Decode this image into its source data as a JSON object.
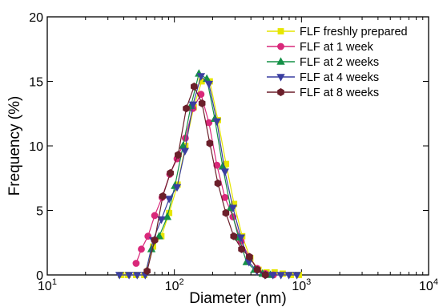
{
  "chart_data": {
    "type": "line",
    "xlabel": "Diameter (nm)",
    "ylabel": "Frequency (%)",
    "xscale": "log",
    "xlim": [
      10,
      10000
    ],
    "ylim": [
      0,
      20
    ],
    "x_ticks": [
      {
        "value": 10,
        "base": "10",
        "exp": "1"
      },
      {
        "value": 100,
        "base": "10",
        "exp": "2"
      },
      {
        "value": 1000,
        "base": "10",
        "exp": "3"
      },
      {
        "value": 10000,
        "base": "10",
        "exp": "4"
      }
    ],
    "y_ticks": [
      0,
      5,
      10,
      15,
      20
    ],
    "legend_position": "top-right",
    "grid": false,
    "series": [
      {
        "name": "FLF freshly prepared",
        "color": "#e6e600",
        "marker": "square",
        "x": [
          38,
          43,
          50,
          58,
          68,
          79,
          91,
          106,
          122,
          142,
          164,
          190,
          220,
          255,
          295,
          342,
          396,
          459,
          531,
          615,
          712,
          825,
          955
        ],
        "y": [
          0,
          0,
          0,
          0,
          2.2,
          3.0,
          4.8,
          7.0,
          10.0,
          13.0,
          15.0,
          15.0,
          12.0,
          8.6,
          5.5,
          3.0,
          1.3,
          0.4,
          0.2,
          0.2,
          0.1,
          0,
          0
        ]
      },
      {
        "name": "FLF at 1 week",
        "color": "#d9287a",
        "marker": "circle",
        "x": [
          50,
          55,
          62,
          70,
          80,
          92,
          105,
          122,
          140,
          162,
          187,
          216,
          250,
          289,
          335,
          388,
          449,
          520,
          602
        ],
        "y": [
          0.9,
          2.0,
          3.0,
          4.6,
          6.0,
          7.8,
          9.0,
          10.6,
          12.9,
          14.0,
          11.8,
          8.5,
          6.0,
          4.5,
          2.6,
          1.4,
          0.5,
          0.1,
          0
        ]
      },
      {
        "name": "FLF at 2 weeks",
        "color": "#159047",
        "marker": "triangle-up",
        "x": [
          66,
          76,
          88,
          101,
          117,
          135,
          156,
          180,
          208,
          240,
          277,
          320,
          370,
          427,
          494,
          570
        ],
        "y": [
          2.0,
          3.0,
          4.5,
          6.9,
          10.0,
          13.1,
          15.6,
          15.2,
          12.1,
          8.4,
          5.2,
          2.9,
          1.0,
          0.4,
          0.1,
          0
        ]
      },
      {
        "name": "FLF at 4 weeks",
        "color": "#3a3ea0",
        "marker": "triangle-down",
        "x": [
          37,
          44,
          51,
          59,
          68,
          79,
          91,
          105,
          121,
          140,
          162,
          187,
          216,
          250,
          289,
          334,
          386,
          446,
          516,
          596,
          689,
          796,
          920
        ],
        "y": [
          0,
          0,
          0,
          0,
          2.7,
          4.3,
          5.9,
          6.8,
          9.6,
          13.2,
          15.4,
          14.8,
          11.9,
          8.0,
          5.2,
          2.9,
          1.0,
          0.3,
          0,
          0,
          0,
          0,
          0
        ]
      },
      {
        "name": "FLF at 8 weeks",
        "color": "#6b1f2a",
        "marker": "hexagon",
        "x": [
          61,
          70,
          81,
          93,
          107,
          124,
          143,
          165,
          190,
          220,
          254,
          293,
          338,
          390,
          450,
          520
        ],
        "y": [
          0.3,
          2.7,
          6.1,
          7.9,
          9.3,
          12.9,
          14.6,
          13.3,
          10.2,
          7.1,
          4.8,
          3.0,
          2.0,
          1.4,
          0.4,
          0
        ]
      }
    ]
  }
}
